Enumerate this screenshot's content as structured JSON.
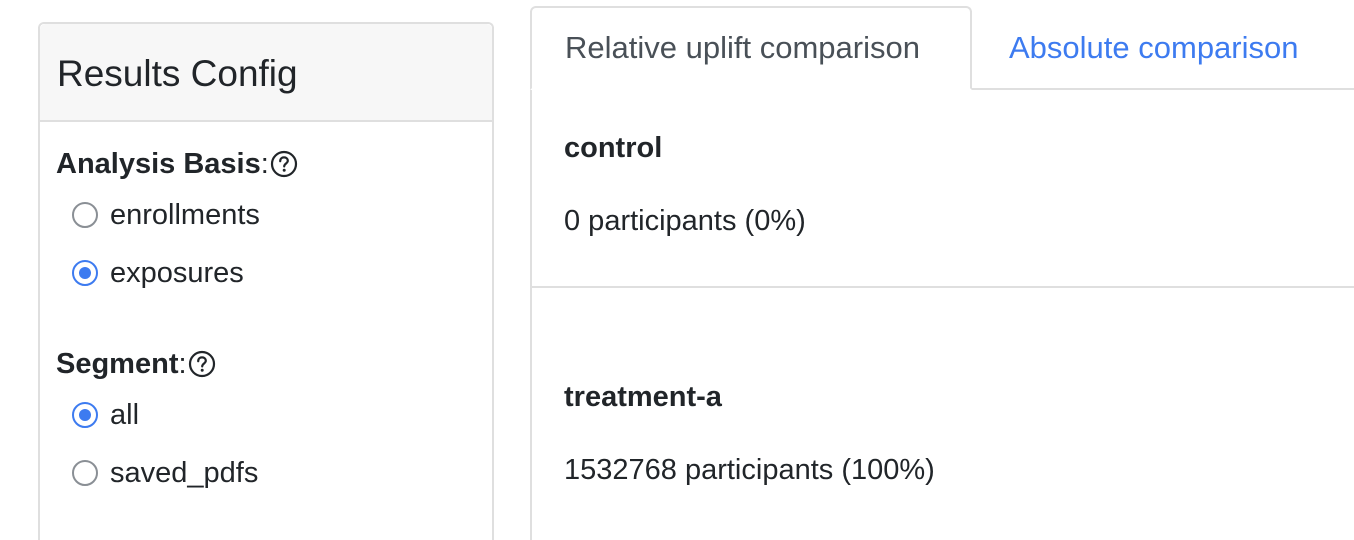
{
  "config": {
    "title": "Results Config",
    "analysis_basis": {
      "label": "Analysis Basis",
      "colon": ":",
      "help_icon": "question-circle-icon",
      "options": [
        {
          "label": "enrollments",
          "checked": false
        },
        {
          "label": "exposures",
          "checked": true
        }
      ]
    },
    "segment": {
      "label": "Segment",
      "colon": ":",
      "help_icon": "question-circle-icon",
      "options": [
        {
          "label": "all",
          "checked": true
        },
        {
          "label": "saved_pdfs",
          "checked": false
        }
      ]
    }
  },
  "tabs": [
    {
      "label": "Relative uplift comparison",
      "active": true
    },
    {
      "label": "Absolute comparison",
      "active": false
    }
  ],
  "branches": [
    {
      "name": "control",
      "participants": "0 participants (0%)"
    },
    {
      "name": "treatment-a",
      "participants": "1532768 participants (100%)"
    }
  ],
  "colors": {
    "accent": "#3d7bf0",
    "border": "#dfdfdf",
    "header_bg": "#f7f7f7",
    "text": "#212529",
    "muted_tab_text": "#495057"
  }
}
